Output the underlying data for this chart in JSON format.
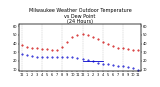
{
  "title": "Milwaukee Weather Outdoor Temperature\nvs Dew Point\n(24 Hours)",
  "title_fontsize": 3.5,
  "bg_color": "#ffffff",
  "grid_color": "#aaaaaa",
  "temp_color": "#cc0000",
  "dew_color": "#0000cc",
  "hours": [
    0,
    1,
    2,
    3,
    4,
    5,
    6,
    7,
    8,
    9,
    10,
    11,
    12,
    13,
    14,
    15,
    16,
    17,
    18,
    19,
    20,
    21,
    22,
    23
  ],
  "temp": [
    38,
    36,
    35,
    35,
    34,
    34,
    33,
    32,
    36,
    42,
    47,
    50,
    51,
    50,
    48,
    45,
    42,
    39,
    37,
    35,
    35,
    34,
    33,
    32
  ],
  "dew": [
    28,
    27,
    26,
    25,
    25,
    25,
    24,
    24,
    24,
    24,
    24,
    23,
    22,
    21,
    20,
    18,
    17,
    16,
    15,
    14,
    14,
    13,
    12,
    10
  ],
  "dew_line_x": [
    12,
    16
  ],
  "dew_line_y": [
    20,
    20
  ],
  "xlim": [
    -0.5,
    23.5
  ],
  "ylim": [
    8,
    62
  ],
  "yticks_left": [
    10,
    20,
    30,
    40,
    50,
    60
  ],
  "yticks_right": [
    10,
    20,
    30,
    40,
    50,
    60
  ],
  "xtick_labels": [
    "12",
    "1",
    "2",
    "3",
    "4",
    "5",
    "6",
    "7",
    "8",
    "9",
    "10",
    "11",
    "12",
    "1",
    "2",
    "3",
    "4",
    "5",
    "6",
    "7",
    "8",
    "9",
    "10",
    "11"
  ],
  "xtick_fontsize": 2.5,
  "ytick_fontsize": 2.5,
  "vgrid_positions": [
    0,
    4,
    8,
    12,
    16,
    20
  ],
  "marker_size": 0.9,
  "line_width": 0.6
}
